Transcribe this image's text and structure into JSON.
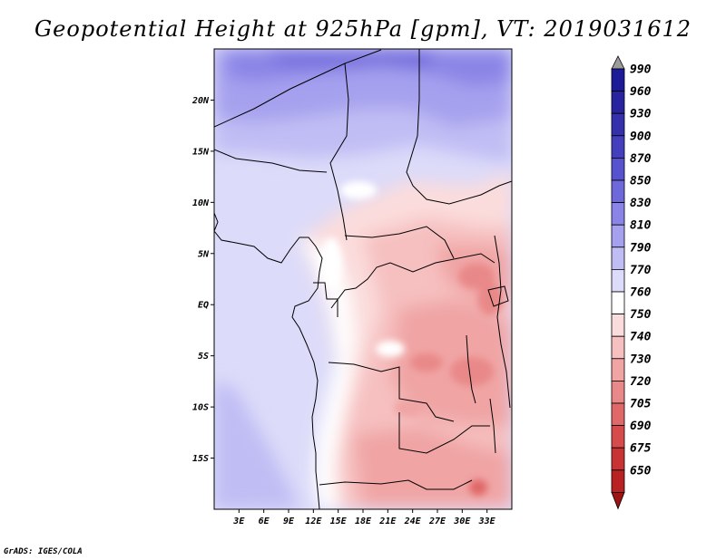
{
  "title": "Geopotential Height at 925hPa [gpm], VT: 2019031612",
  "footer": "GrADS: IGES/COLA",
  "map": {
    "lon_range": [
      0,
      36
    ],
    "lat_range": [
      -20,
      25
    ],
    "lat_ticks": [
      {
        "label": "20N",
        "lat": 20
      },
      {
        "label": "15N",
        "lat": 15
      },
      {
        "label": "10N",
        "lat": 10
      },
      {
        "label": "5N",
        "lat": 5
      },
      {
        "label": "EQ",
        "lat": 0
      },
      {
        "label": "5S",
        "lat": -5
      },
      {
        "label": "10S",
        "lat": -10
      },
      {
        "label": "15S",
        "lat": -15
      }
    ],
    "lon_ticks": [
      {
        "label": "3E",
        "lon": 3
      },
      {
        "label": "6E",
        "lon": 6
      },
      {
        "label": "9E",
        "lon": 9
      },
      {
        "label": "12E",
        "lon": 12
      },
      {
        "label": "15E",
        "lon": 15
      },
      {
        "label": "18E",
        "lon": 18
      },
      {
        "label": "21E",
        "lon": 21
      },
      {
        "label": "24E",
        "lon": 24
      },
      {
        "label": "27E",
        "lon": 27
      },
      {
        "label": "30E",
        "lon": 30
      },
      {
        "label": "33E",
        "lon": 33
      }
    ]
  },
  "colorbar": {
    "levels": [
      {
        "label": "990",
        "color": "#1c1a96"
      },
      {
        "label": "960",
        "color": "#28249f"
      },
      {
        "label": "930",
        "color": "#3530ab"
      },
      {
        "label": "900",
        "color": "#443fbc"
      },
      {
        "label": "870",
        "color": "#5752cd"
      },
      {
        "label": "850",
        "color": "#6e68db"
      },
      {
        "label": "830",
        "color": "#8a84e6"
      },
      {
        "label": "810",
        "color": "#a6a1ee"
      },
      {
        "label": "790",
        "color": "#c0bdf4"
      },
      {
        "label": "770",
        "color": "#dcdbf9"
      },
      {
        "label": "760",
        "color": "#ffffff"
      },
      {
        "label": "750",
        "color": "#fbdcdc"
      },
      {
        "label": "740",
        "color": "#f6c0c0"
      },
      {
        "label": "730",
        "color": "#f0a4a4"
      },
      {
        "label": "720",
        "color": "#e98888"
      },
      {
        "label": "705",
        "color": "#e06868"
      },
      {
        "label": "690",
        "color": "#d64c4c"
      },
      {
        "label": "675",
        "color": "#c83434"
      },
      {
        "label": "650",
        "color": "#b82222"
      }
    ],
    "top_cap_color": "#9c9c9c",
    "bottom_cap_color": "#9c1414"
  }
}
